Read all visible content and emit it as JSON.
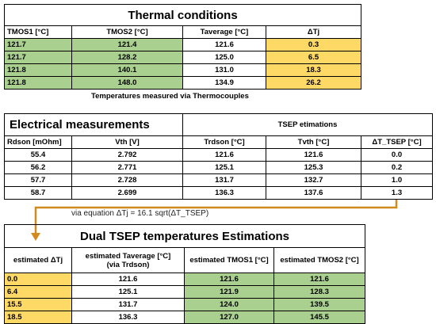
{
  "thermal": {
    "title": "Thermal conditions",
    "headers": [
      "TMOS1 [°C]",
      "TMOS2 [°C]",
      "Taverage [°C]",
      "ΔTj"
    ],
    "rows": [
      [
        "121.7",
        "121.4",
        "121.6",
        "0.3"
      ],
      [
        "121.7",
        "128.2",
        "125.0",
        "6.5"
      ],
      [
        "121.8",
        "140.1",
        "131.0",
        "18.3"
      ],
      [
        "121.8",
        "148.0",
        "134.9",
        "26.2"
      ]
    ],
    "caption": "Temperatures measured via Thermocouples"
  },
  "electrical": {
    "title": "Electrical measurements",
    "tsep_title": "TSEP etimations",
    "headers": [
      "Rdson [mOhm]",
      "Vth [V]",
      "Trdson [°C]",
      "Tvth [°C]",
      "ΔT_TSEP [°C]"
    ],
    "rows": [
      [
        "55.4",
        "2.792",
        "121.6",
        "121.6",
        "0.0"
      ],
      [
        "56.2",
        "2.771",
        "125.1",
        "125.3",
        "0.2"
      ],
      [
        "57.7",
        "2.728",
        "131.7",
        "132.7",
        "1.0"
      ],
      [
        "58.7",
        "2.699",
        "136.3",
        "137.6",
        "1.3"
      ]
    ]
  },
  "equation": "via equation  ΔTj = 16.1 sqrt(ΔT_TSEP)",
  "dual": {
    "title": "Dual TSEP temperatures Estimations",
    "headers": [
      "estimated ΔTj",
      "estimated Taverage [°C]\n(via Trdson)",
      "estimated TMOS1 [°C]",
      "estimated TMOS2 [°C]"
    ],
    "rows": [
      [
        "0.0",
        "121.6",
        "121.6",
        "121.6"
      ],
      [
        "6.4",
        "125.1",
        "121.9",
        "128.3"
      ],
      [
        "15.5",
        "131.7",
        "124.0",
        "139.5"
      ],
      [
        "18.5",
        "136.3",
        "127.0",
        "145.5"
      ]
    ]
  }
}
